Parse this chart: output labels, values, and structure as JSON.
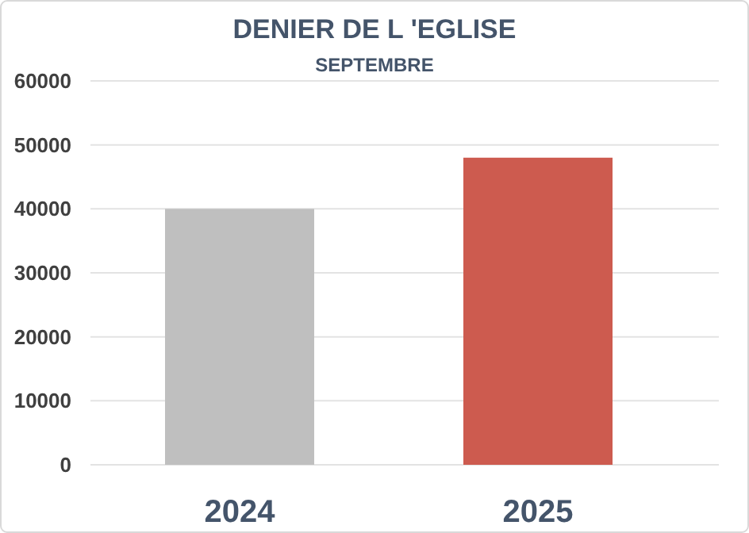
{
  "chart_data": {
    "type": "bar",
    "title": "DENIER DE L 'EGLISE",
    "subtitle": "SEPTEMBRE",
    "categories": [
      "2024",
      "2025"
    ],
    "values": [
      40000,
      48000
    ],
    "colors": [
      "#bfbfbf",
      "#cd5b4f"
    ],
    "ylim": [
      0,
      60000
    ],
    "yticks": [
      0,
      10000,
      20000,
      30000,
      40000,
      50000,
      60000
    ],
    "grid": "y"
  }
}
